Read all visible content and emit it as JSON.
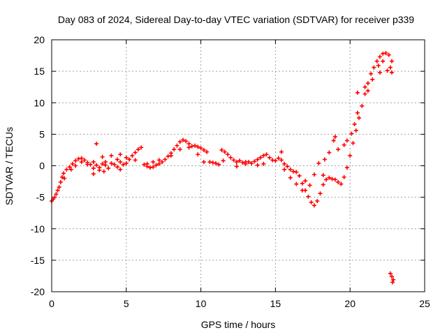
{
  "chart_data": {
    "type": "scatter",
    "title": "Day 083 of 2024, Sidereal Day-to-day VTEC variation (SDTVAR) for receiver p339",
    "xlabel": "GPS time / hours",
    "ylabel": "SDTVAR / TECUs",
    "xlim": [
      0,
      25
    ],
    "ylim": [
      -20,
      20
    ],
    "xticks": [
      0,
      5,
      10,
      15,
      20,
      25
    ],
    "yticks": [
      -20,
      -15,
      -10,
      -5,
      0,
      5,
      10,
      15,
      20
    ],
    "grid": true,
    "marker": "+",
    "color": "#ff0000",
    "series": [
      {
        "name": "SDTVAR",
        "points": [
          [
            0.0,
            -5.6
          ],
          [
            0.1,
            -5.3
          ],
          [
            0.2,
            -5.0
          ],
          [
            0.3,
            -4.5
          ],
          [
            0.4,
            -3.9
          ],
          [
            0.5,
            -3.4
          ],
          [
            0.6,
            -2.6
          ],
          [
            0.7,
            -1.8
          ],
          [
            0.8,
            -1.2
          ],
          [
            0.85,
            -2.0
          ],
          [
            1.0,
            -0.6
          ],
          [
            1.2,
            -0.2
          ],
          [
            1.4,
            0.3
          ],
          [
            1.6,
            0.8
          ],
          [
            1.8,
            1.1
          ],
          [
            2.0,
            1.2
          ],
          [
            2.2,
            0.9
          ],
          [
            2.4,
            0.5
          ],
          [
            2.6,
            0.2
          ],
          [
            2.8,
            0.6
          ],
          [
            3.0,
            0.1
          ],
          [
            3.2,
            -0.3
          ],
          [
            3.4,
            0.3
          ],
          [
            3.6,
            0.1
          ],
          [
            3.8,
            -0.4
          ],
          [
            4.0,
            0.4
          ],
          [
            4.2,
            0.2
          ],
          [
            4.4,
            -0.2
          ],
          [
            4.6,
            0.6
          ],
          [
            4.8,
            0.2
          ],
          [
            5.0,
            0.4
          ],
          [
            5.2,
            1.0
          ],
          [
            5.4,
            1.6
          ],
          [
            5.6,
            2.1
          ],
          [
            5.8,
            2.6
          ],
          [
            6.0,
            2.9
          ],
          [
            6.2,
            0.2
          ],
          [
            6.4,
            -0.1
          ],
          [
            6.6,
            -0.3
          ],
          [
            6.8,
            -0.2
          ],
          [
            7.0,
            0.1
          ],
          [
            7.2,
            0.3
          ],
          [
            7.4,
            0.6
          ],
          [
            7.6,
            1.0
          ],
          [
            7.8,
            1.5
          ],
          [
            8.0,
            2.0
          ],
          [
            8.2,
            2.6
          ],
          [
            8.4,
            3.2
          ],
          [
            8.6,
            3.8
          ],
          [
            8.8,
            4.1
          ],
          [
            9.0,
            3.9
          ],
          [
            9.2,
            3.5
          ],
          [
            9.4,
            3.1
          ],
          [
            9.6,
            3.2
          ],
          [
            9.8,
            3.0
          ],
          [
            10.0,
            2.8
          ],
          [
            10.2,
            2.5
          ],
          [
            10.4,
            2.2
          ],
          [
            10.2,
            0.6
          ],
          [
            10.6,
            0.6
          ],
          [
            11.0,
            0.4
          ],
          [
            11.2,
            0.2
          ],
          [
            11.4,
            2.5
          ],
          [
            11.6,
            2.2
          ],
          [
            11.8,
            1.8
          ],
          [
            12.0,
            1.3
          ],
          [
            12.2,
            0.9
          ],
          [
            12.4,
            0.6
          ],
          [
            12.6,
            0.8
          ],
          [
            12.8,
            0.5
          ],
          [
            13.0,
            0.3
          ],
          [
            13.2,
            0.6
          ],
          [
            13.4,
            0.4
          ],
          [
            13.6,
            0.7
          ],
          [
            13.8,
            1.0
          ],
          [
            14.0,
            1.3
          ],
          [
            14.2,
            1.6
          ],
          [
            14.4,
            1.8
          ],
          [
            14.6,
            1.3
          ],
          [
            14.8,
            0.9
          ],
          [
            15.0,
            0.8
          ],
          [
            15.2,
            1.2
          ],
          [
            15.4,
            0.9
          ],
          [
            15.6,
            0.3
          ],
          [
            15.8,
            -0.1
          ],
          [
            16.0,
            -0.6
          ],
          [
            16.2,
            -0.9
          ],
          [
            16.4,
            -1.0
          ],
          [
            16.6,
            -1.6
          ],
          [
            16.8,
            -2.8
          ],
          [
            17.0,
            -3.9
          ],
          [
            17.2,
            -4.9
          ],
          [
            17.4,
            -5.8
          ],
          [
            17.6,
            -6.3
          ],
          [
            17.8,
            -5.6
          ],
          [
            18.0,
            -4.4
          ],
          [
            18.2,
            -3.0
          ],
          [
            18.4,
            -2.2
          ],
          [
            18.6,
            -1.9
          ],
          [
            18.8,
            -2.1
          ],
          [
            19.0,
            -2.2
          ],
          [
            19.2,
            -2.6
          ],
          [
            19.4,
            -2.9
          ],
          [
            19.6,
            -1.8
          ],
          [
            19.8,
            -0.3
          ],
          [
            20.0,
            1.6
          ],
          [
            20.2,
            3.6
          ],
          [
            20.4,
            5.6
          ],
          [
            20.6,
            7.6
          ],
          [
            20.8,
            9.5
          ],
          [
            21.0,
            11.4
          ],
          [
            21.2,
            13.1
          ],
          [
            21.4,
            14.6
          ],
          [
            21.6,
            15.6
          ],
          [
            21.8,
            16.6
          ],
          [
            22.0,
            17.3
          ],
          [
            22.2,
            17.8
          ],
          [
            22.4,
            17.9
          ],
          [
            22.6,
            17.6
          ],
          [
            22.8,
            16.6
          ],
          [
            22.5,
            15.1
          ],
          [
            22.0,
            14.8
          ],
          [
            21.5,
            13.7
          ],
          [
            21.0,
            12.5
          ],
          [
            20.5,
            8.4
          ],
          [
            20.1,
            5.1
          ],
          [
            19.6,
            3.3
          ],
          [
            19.2,
            2.6
          ],
          [
            18.9,
            4.0
          ],
          [
            18.6,
            2.1
          ],
          [
            18.3,
            1.0
          ],
          [
            17.9,
            0.4
          ],
          [
            17.6,
            -1.4
          ],
          [
            17.3,
            -3.1
          ],
          [
            17.0,
            -2.4
          ],
          [
            16.8,
            -3.9
          ],
          [
            16.4,
            -2.9
          ],
          [
            16.0,
            -1.9
          ],
          [
            15.6,
            -0.6
          ],
          [
            15.4,
            2.2
          ],
          [
            14.2,
            0.3
          ],
          [
            13.8,
            0.1
          ],
          [
            13.0,
            0.6
          ],
          [
            12.4,
            -0.1
          ],
          [
            11.5,
            0.8
          ],
          [
            10.8,
            0.5
          ],
          [
            9.8,
            1.8
          ],
          [
            9.2,
            2.9
          ],
          [
            8.6,
            2.6
          ],
          [
            8.0,
            1.6
          ],
          [
            7.2,
            0.9
          ],
          [
            6.8,
            0.6
          ],
          [
            6.4,
            0.3
          ],
          [
            5.6,
            0.9
          ],
          [
            5.0,
            1.3
          ],
          [
            4.4,
            1.0
          ],
          [
            4.0,
            1.6
          ],
          [
            3.6,
            0.6
          ],
          [
            3.2,
            -0.7
          ],
          [
            2.8,
            -0.4
          ],
          [
            2.4,
            0.2
          ],
          [
            2.0,
            0.6
          ],
          [
            1.6,
            0.0
          ],
          [
            1.3,
            -0.6
          ],
          [
            2.8,
            -1.3
          ],
          [
            3.5,
            -0.9
          ],
          [
            4.6,
            -0.6
          ],
          [
            3.0,
            3.5
          ],
          [
            3.4,
            1.4
          ],
          [
            4.6,
            1.8
          ],
          [
            19.0,
            4.6
          ],
          [
            20.5,
            11.6
          ],
          [
            21.2,
            11.9
          ],
          [
            21.9,
            15.9
          ],
          [
            22.2,
            16.6
          ],
          [
            22.7,
            15.6
          ],
          [
            22.8,
            14.8
          ],
          [
            20.3,
            6.6
          ],
          [
            19.8,
            4.0
          ],
          [
            18.2,
            -1.5
          ],
          [
            22.7,
            -17.1
          ],
          [
            22.8,
            -17.6
          ],
          [
            22.9,
            -18.1
          ],
          [
            22.85,
            -18.5
          ]
        ]
      }
    ]
  }
}
